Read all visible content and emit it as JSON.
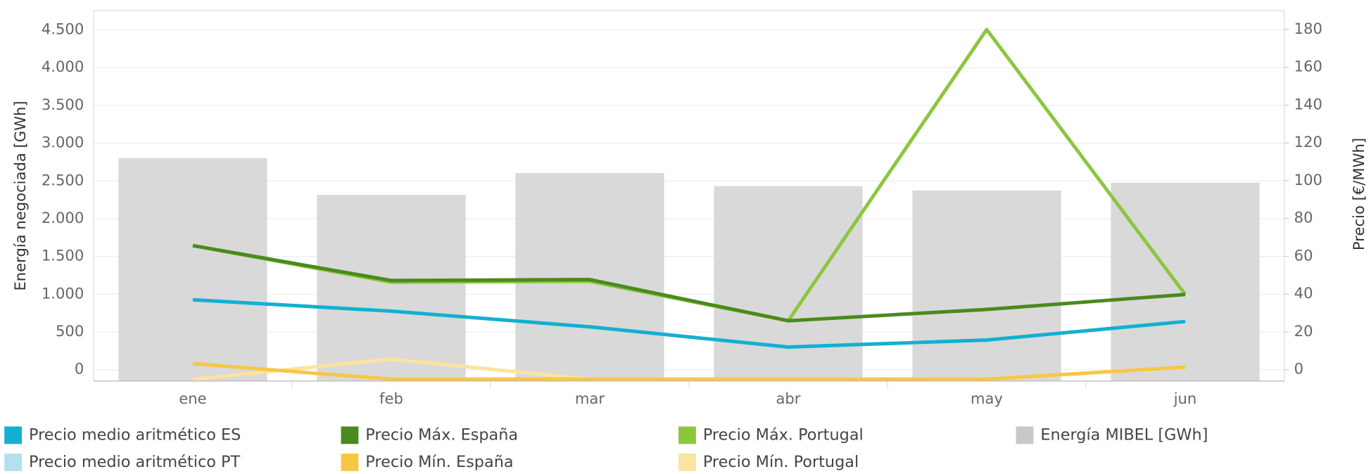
{
  "chart_data": {
    "type": "combo",
    "categories": [
      "ene",
      "feb",
      "mar",
      "abr",
      "may",
      "jun"
    ],
    "ylabel": "Energía negociada [GWh]",
    "y2label": "Precio [€/MWh]",
    "ylim": [
      -150,
      4755
    ],
    "yticks": [
      0,
      500,
      {
        "value": 1000,
        "label": "1.000"
      },
      {
        "value": 1500,
        "label": "1.500"
      },
      {
        "value": 2000,
        "label": "2.000"
      },
      {
        "value": 2500,
        "label": "2.500"
      },
      {
        "value": 3000,
        "label": "3.000"
      },
      {
        "value": 3500,
        "label": "3.500"
      },
      {
        "value": 4000,
        "label": "4.000"
      },
      {
        "value": 4500,
        "label": "4.500"
      }
    ],
    "y2lim": [
      -6,
      190
    ],
    "y2ticks": [
      0,
      20,
      40,
      60,
      80,
      100,
      120,
      140,
      160,
      180
    ],
    "grid": true,
    "series": [
      {
        "name": "Precio medio aritmético ES",
        "type": "line",
        "axis": "y2",
        "color": "#13b0d1",
        "values": [
          37.0,
          31.0,
          22.7,
          12.0,
          15.7,
          25.5
        ]
      },
      {
        "name": "Precio Máx. España",
        "type": "line",
        "axis": "y2",
        "color": "#4a8a1e",
        "values": [
          65.7,
          47.2,
          47.7,
          25.9,
          31.9,
          39.8
        ]
      },
      {
        "name": "Precio Máx. Portugal",
        "type": "line",
        "axis": "y2",
        "color": "#8cc63f",
        "values": [
          65.7,
          46.3,
          46.8,
          25.9,
          180,
          39.8
        ]
      },
      {
        "name": "Energía MIBEL [GWh]",
        "type": "bar",
        "color": "#d9d9da",
        "values": [
          2801,
          2315,
          2604,
          2431,
          2373,
          2477
        ]
      },
      {
        "name": "Precio medio aritmético PT",
        "type": "line",
        "axis": "y2",
        "color": "#b3e0ee",
        "values": [
          37.0,
          31.0,
          22.7,
          12.0,
          15.7,
          25.5
        ]
      },
      {
        "name": "Precio Mín. España",
        "type": "line",
        "axis": "y2",
        "color": "#f7c744",
        "values": [
          3.2,
          -5,
          -5,
          -5,
          -5,
          1.4
        ]
      },
      {
        "name": "Precio Mín. Portugal",
        "type": "line",
        "axis": "y2",
        "color": "#fbe3a0",
        "values": [
          -5,
          5.6,
          -5,
          -5,
          -5,
          1.4
        ]
      }
    ]
  }
}
